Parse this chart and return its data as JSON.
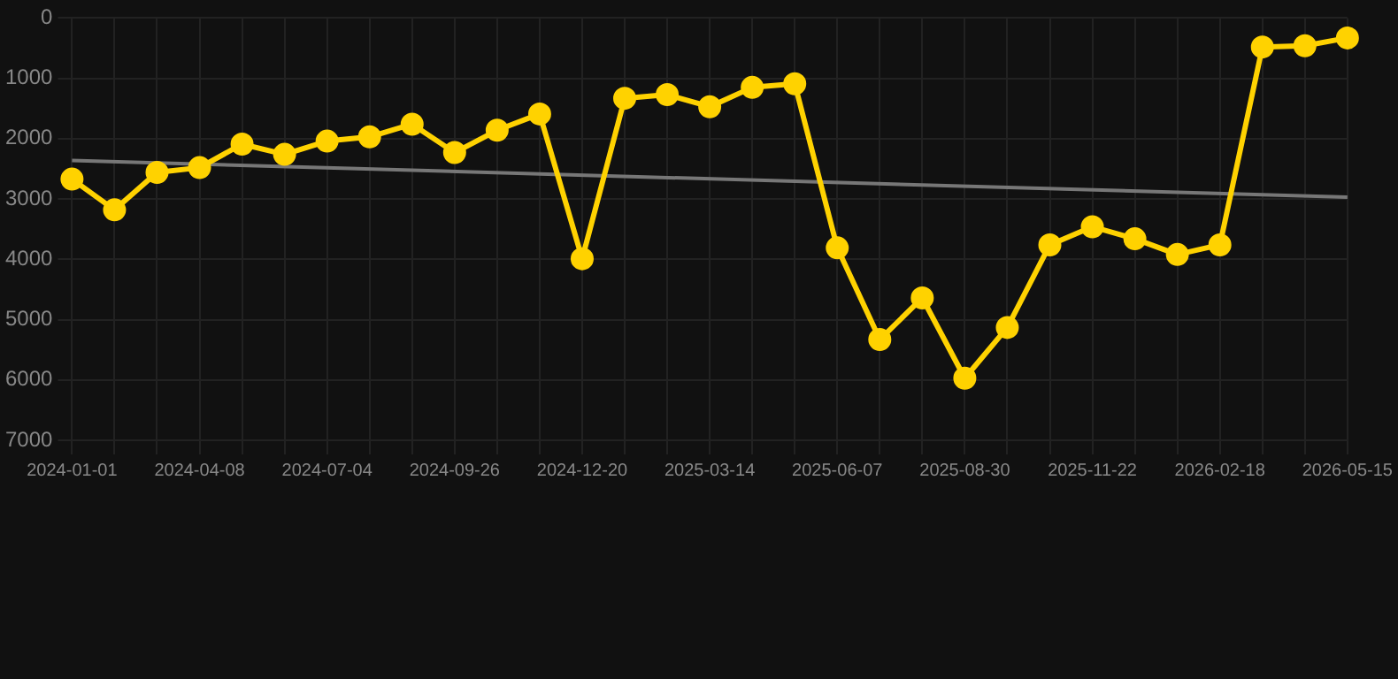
{
  "chart_data": {
    "type": "line",
    "categories": [
      "2024-01-01",
      null,
      null,
      "2024-04-08",
      null,
      null,
      "2024-07-04",
      null,
      null,
      "2024-09-26",
      null,
      null,
      "2024-12-20",
      null,
      null,
      "2025-03-14",
      null,
      null,
      "2025-06-07",
      null,
      null,
      "2025-08-30",
      null,
      null,
      "2025-11-22",
      null,
      null,
      "2026-02-18",
      null,
      null,
      "2026-05-15"
    ],
    "series": [
      {
        "color": "#ffd200",
        "marker": "circle",
        "values": [
          2670,
          3180,
          2560,
          2480,
          2090,
          2260,
          2040,
          1970,
          1760,
          2230,
          1860,
          1590,
          3990,
          1330,
          1270,
          1470,
          1150,
          1090,
          3810,
          5330,
          4640,
          5970,
          5130,
          3760,
          3460,
          3660,
          3920,
          3760,
          480,
          460,
          330
        ]
      },
      {
        "color": "#777777",
        "marker": "none",
        "values": [
          2360,
          null,
          null,
          null,
          null,
          null,
          null,
          null,
          null,
          null,
          null,
          null,
          null,
          null,
          null,
          null,
          null,
          null,
          null,
          null,
          null,
          null,
          null,
          null,
          null,
          null,
          null,
          null,
          null,
          null,
          2970
        ]
      }
    ],
    "ylim": [
      7000,
      0
    ],
    "yticks": [
      0,
      1000,
      2000,
      3000,
      4000,
      5000,
      6000,
      7000
    ],
    "grid": true,
    "line_style": "solid"
  }
}
